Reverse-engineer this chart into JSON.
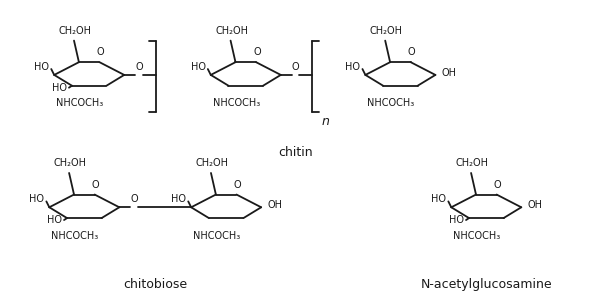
{
  "bg_color": "#ffffff",
  "line_color": "#1a1a1a",
  "line_width": 1.3,
  "font_size": 7.0,
  "label_chitin": "chitin",
  "label_chitobiose": "chitobiose",
  "label_nag": "N-acetylglucosamine",
  "label_n": "n",
  "ch2oh": "CH₂OH",
  "nhcoch3": "NHCOCH₃",
  "ho": "HO",
  "o": "O",
  "oh": "OH"
}
